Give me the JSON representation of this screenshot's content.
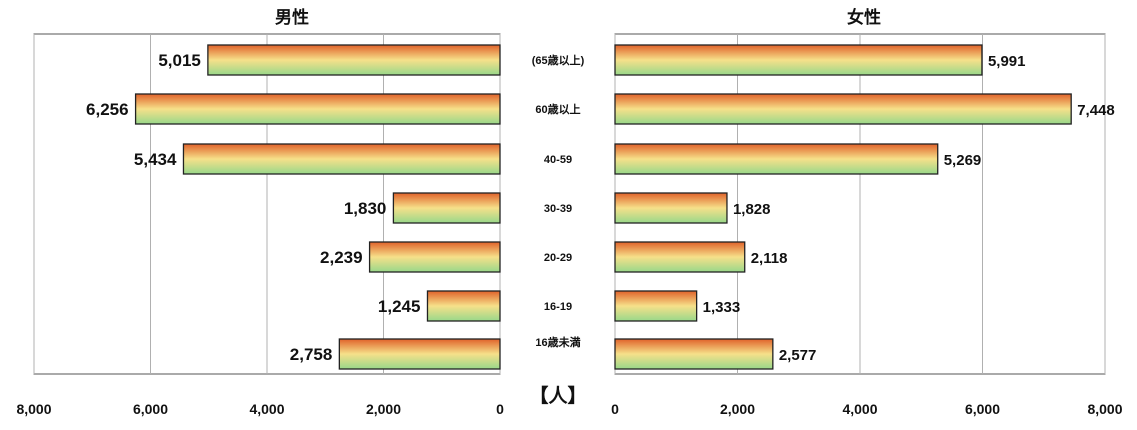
{
  "chart_data": [
    {
      "type": "bar",
      "orientation": "horizontal",
      "title": "男性",
      "categories": [
        "(65歳以上)",
        "60歳以上",
        "40-59",
        "30-39",
        "20-29",
        "16-19",
        "16歳未満"
      ],
      "values": [
        5015,
        6256,
        5434,
        1830,
        2239,
        1245,
        2758
      ],
      "value_labels": [
        "5,015",
        "6,256",
        "5,434",
        "1,830",
        "2,239",
        "1,245",
        "2,758"
      ],
      "xlim": [
        0,
        8000
      ],
      "x_reversed": true,
      "xticks": [
        8000,
        6000,
        4000,
        2000,
        0
      ],
      "xtick_labels": [
        "8,000",
        "6,000",
        "4,000",
        "2,000",
        "0"
      ],
      "grid": true
    },
    {
      "type": "bar",
      "orientation": "horizontal",
      "title": "女性",
      "categories": [
        "(65歳以上)",
        "60歳以上",
        "40-59",
        "30-39",
        "20-29",
        "16-19",
        "16歳未満"
      ],
      "values": [
        5991,
        7448,
        5269,
        1828,
        2118,
        1333,
        2577
      ],
      "value_labels": [
        "5,991",
        "7,448",
        "5,269",
        "1,828",
        "2,118",
        "1,333",
        "2,577"
      ],
      "xlim": [
        0,
        8000
      ],
      "x_reversed": false,
      "xticks": [
        0,
        2000,
        4000,
        6000,
        8000
      ],
      "xtick_labels": [
        "0",
        "2,000",
        "4,000",
        "6,000",
        "8,000"
      ],
      "grid": true
    }
  ],
  "unit_label": "【人】",
  "colors": {
    "bar_top": "#e0622a",
    "bar_mid": "#f6e08a",
    "bar_bottom": "#98d88a",
    "bar_border": "#222222",
    "grid": "#b0b0b0",
    "frame": "#555555"
  }
}
